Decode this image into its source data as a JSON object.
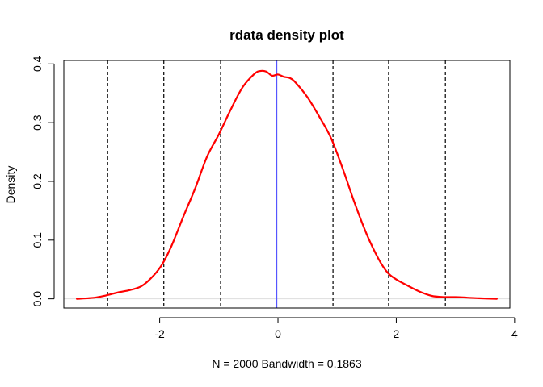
{
  "chart_data": {
    "type": "line",
    "title": "rdata density plot",
    "xlabel": "N = 2000   Bandwidth = 0.1863",
    "ylabel": "Density",
    "xlim": [
      -3.62,
      3.92
    ],
    "ylim": [
      -0.0156,
      0.4059
    ],
    "x_ticks": [
      -2,
      0,
      2,
      4
    ],
    "x_tick_labels": [
      "-2",
      "0",
      "2",
      "4"
    ],
    "y_ticks": [
      0.0,
      0.1,
      0.2,
      0.3,
      0.4
    ],
    "y_tick_labels": [
      "0.0",
      "0.1",
      "0.2",
      "0.3",
      "0.4"
    ],
    "grid": false,
    "series": [
      {
        "color": "#ff0000",
        "x": [
          -3.4,
          -3.1,
          -2.9,
          -2.7,
          -2.5,
          -2.3,
          -2.1,
          -1.95,
          -1.8,
          -1.6,
          -1.4,
          -1.2,
          -1.0,
          -0.8,
          -0.6,
          -0.4,
          -0.3,
          -0.2,
          -0.1,
          0.0,
          0.1,
          0.2,
          0.3,
          0.5,
          0.7,
          0.9,
          1.1,
          1.3,
          1.5,
          1.7,
          1.85,
          2.0,
          2.2,
          2.4,
          2.6,
          2.8,
          3.0,
          3.2,
          3.4,
          3.7
        ],
        "y": [
          0.0,
          0.002,
          0.006,
          0.011,
          0.015,
          0.022,
          0.04,
          0.06,
          0.09,
          0.14,
          0.188,
          0.242,
          0.28,
          0.322,
          0.36,
          0.383,
          0.388,
          0.387,
          0.38,
          0.382,
          0.378,
          0.376,
          0.368,
          0.343,
          0.31,
          0.273,
          0.22,
          0.162,
          0.11,
          0.068,
          0.045,
          0.033,
          0.022,
          0.012,
          0.005,
          0.003,
          0.003,
          0.002,
          0.001,
          0.0
        ]
      }
    ],
    "vertical_lines": [
      {
        "x": -2.88,
        "style": "dashed",
        "color": "#000000"
      },
      {
        "x": -1.93,
        "style": "dashed",
        "color": "#000000"
      },
      {
        "x": -0.97,
        "style": "dashed",
        "color": "#000000"
      },
      {
        "x": 0.93,
        "style": "dashed",
        "color": "#000000"
      },
      {
        "x": 1.87,
        "style": "dashed",
        "color": "#000000"
      },
      {
        "x": 2.83,
        "style": "dashed",
        "color": "#000000"
      },
      {
        "x": -0.02,
        "style": "solid",
        "color": "#5555ff"
      }
    ],
    "baseline": {
      "y": 0.0,
      "color": "#dddddd"
    }
  }
}
